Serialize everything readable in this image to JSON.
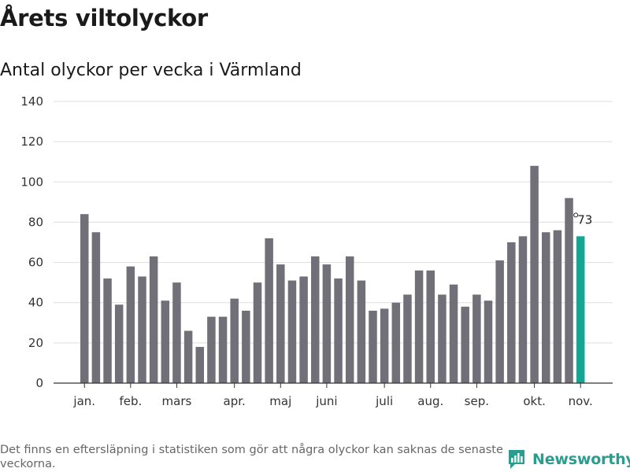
{
  "header": {
    "title": "Årets viltolyckor",
    "subtitle": "Antal olyckor per vecka i Värmland"
  },
  "footer": {
    "note": "Det finns en eftersläpning i statistiken som gör att några olyckor kan saknas de senaste veckorna.",
    "brand": "Newsworthy"
  },
  "colors": {
    "bar": "#717078",
    "highlight": "#16a595",
    "grid": "#dddddd",
    "brand": "#2a9d8f"
  },
  "chart_data": {
    "type": "bar",
    "values": [
      84,
      75,
      52,
      39,
      58,
      53,
      63,
      41,
      50,
      26,
      18,
      33,
      33,
      42,
      36,
      50,
      72,
      59,
      51,
      53,
      63,
      59,
      52,
      63,
      51,
      36,
      37,
      40,
      44,
      56,
      56,
      44,
      49,
      38,
      44,
      41,
      61,
      70,
      73,
      108,
      75,
      76,
      92,
      73
    ],
    "highlight_index": 43,
    "highlight_label": "73",
    "month_labels": [
      {
        "label": "jan.",
        "week": 1
      },
      {
        "label": "feb.",
        "week": 5
      },
      {
        "label": "mars",
        "week": 9
      },
      {
        "label": "apr.",
        "week": 14
      },
      {
        "label": "maj",
        "week": 18
      },
      {
        "label": "juni",
        "week": 22
      },
      {
        "label": "juli",
        "week": 27
      },
      {
        "label": "aug.",
        "week": 31
      },
      {
        "label": "sep.",
        "week": 35
      },
      {
        "label": "okt.",
        "week": 40
      },
      {
        "label": "nov.",
        "week": 44
      }
    ],
    "yticks": [
      "0",
      "20",
      "40",
      "60",
      "80",
      "100",
      "120",
      "140"
    ],
    "ylim": [
      0,
      140
    ],
    "grid": true
  }
}
